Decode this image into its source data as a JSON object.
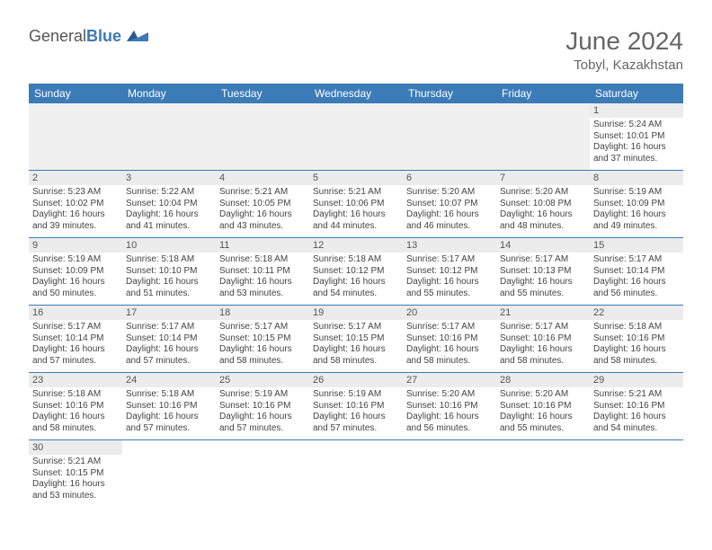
{
  "logo": {
    "text1": "General",
    "text2": "Blue"
  },
  "title": "June 2024",
  "location": "Tobyl, Kazakhstan",
  "colors": {
    "header_bg": "#3b7bb8",
    "header_fg": "#ffffff",
    "daynum_bg": "#ececec",
    "border": "#3b7bb8"
  },
  "weekdays": [
    "Sunday",
    "Monday",
    "Tuesday",
    "Wednesday",
    "Thursday",
    "Friday",
    "Saturday"
  ],
  "weeks": [
    [
      null,
      null,
      null,
      null,
      null,
      null,
      {
        "n": "1",
        "sr": "Sunrise: 5:24 AM",
        "ss": "Sunset: 10:01 PM",
        "dl1": "Daylight: 16 hours",
        "dl2": "and 37 minutes."
      }
    ],
    [
      {
        "n": "2",
        "sr": "Sunrise: 5:23 AM",
        "ss": "Sunset: 10:02 PM",
        "dl1": "Daylight: 16 hours",
        "dl2": "and 39 minutes."
      },
      {
        "n": "3",
        "sr": "Sunrise: 5:22 AM",
        "ss": "Sunset: 10:04 PM",
        "dl1": "Daylight: 16 hours",
        "dl2": "and 41 minutes."
      },
      {
        "n": "4",
        "sr": "Sunrise: 5:21 AM",
        "ss": "Sunset: 10:05 PM",
        "dl1": "Daylight: 16 hours",
        "dl2": "and 43 minutes."
      },
      {
        "n": "5",
        "sr": "Sunrise: 5:21 AM",
        "ss": "Sunset: 10:06 PM",
        "dl1": "Daylight: 16 hours",
        "dl2": "and 44 minutes."
      },
      {
        "n": "6",
        "sr": "Sunrise: 5:20 AM",
        "ss": "Sunset: 10:07 PM",
        "dl1": "Daylight: 16 hours",
        "dl2": "and 46 minutes."
      },
      {
        "n": "7",
        "sr": "Sunrise: 5:20 AM",
        "ss": "Sunset: 10:08 PM",
        "dl1": "Daylight: 16 hours",
        "dl2": "and 48 minutes."
      },
      {
        "n": "8",
        "sr": "Sunrise: 5:19 AM",
        "ss": "Sunset: 10:09 PM",
        "dl1": "Daylight: 16 hours",
        "dl2": "and 49 minutes."
      }
    ],
    [
      {
        "n": "9",
        "sr": "Sunrise: 5:19 AM",
        "ss": "Sunset: 10:09 PM",
        "dl1": "Daylight: 16 hours",
        "dl2": "and 50 minutes."
      },
      {
        "n": "10",
        "sr": "Sunrise: 5:18 AM",
        "ss": "Sunset: 10:10 PM",
        "dl1": "Daylight: 16 hours",
        "dl2": "and 51 minutes."
      },
      {
        "n": "11",
        "sr": "Sunrise: 5:18 AM",
        "ss": "Sunset: 10:11 PM",
        "dl1": "Daylight: 16 hours",
        "dl2": "and 53 minutes."
      },
      {
        "n": "12",
        "sr": "Sunrise: 5:18 AM",
        "ss": "Sunset: 10:12 PM",
        "dl1": "Daylight: 16 hours",
        "dl2": "and 54 minutes."
      },
      {
        "n": "13",
        "sr": "Sunrise: 5:17 AM",
        "ss": "Sunset: 10:12 PM",
        "dl1": "Daylight: 16 hours",
        "dl2": "and 55 minutes."
      },
      {
        "n": "14",
        "sr": "Sunrise: 5:17 AM",
        "ss": "Sunset: 10:13 PM",
        "dl1": "Daylight: 16 hours",
        "dl2": "and 55 minutes."
      },
      {
        "n": "15",
        "sr": "Sunrise: 5:17 AM",
        "ss": "Sunset: 10:14 PM",
        "dl1": "Daylight: 16 hours",
        "dl2": "and 56 minutes."
      }
    ],
    [
      {
        "n": "16",
        "sr": "Sunrise: 5:17 AM",
        "ss": "Sunset: 10:14 PM",
        "dl1": "Daylight: 16 hours",
        "dl2": "and 57 minutes."
      },
      {
        "n": "17",
        "sr": "Sunrise: 5:17 AM",
        "ss": "Sunset: 10:14 PM",
        "dl1": "Daylight: 16 hours",
        "dl2": "and 57 minutes."
      },
      {
        "n": "18",
        "sr": "Sunrise: 5:17 AM",
        "ss": "Sunset: 10:15 PM",
        "dl1": "Daylight: 16 hours",
        "dl2": "and 58 minutes."
      },
      {
        "n": "19",
        "sr": "Sunrise: 5:17 AM",
        "ss": "Sunset: 10:15 PM",
        "dl1": "Daylight: 16 hours",
        "dl2": "and 58 minutes."
      },
      {
        "n": "20",
        "sr": "Sunrise: 5:17 AM",
        "ss": "Sunset: 10:16 PM",
        "dl1": "Daylight: 16 hours",
        "dl2": "and 58 minutes."
      },
      {
        "n": "21",
        "sr": "Sunrise: 5:17 AM",
        "ss": "Sunset: 10:16 PM",
        "dl1": "Daylight: 16 hours",
        "dl2": "and 58 minutes."
      },
      {
        "n": "22",
        "sr": "Sunrise: 5:18 AM",
        "ss": "Sunset: 10:16 PM",
        "dl1": "Daylight: 16 hours",
        "dl2": "and 58 minutes."
      }
    ],
    [
      {
        "n": "23",
        "sr": "Sunrise: 5:18 AM",
        "ss": "Sunset: 10:16 PM",
        "dl1": "Daylight: 16 hours",
        "dl2": "and 58 minutes."
      },
      {
        "n": "24",
        "sr": "Sunrise: 5:18 AM",
        "ss": "Sunset: 10:16 PM",
        "dl1": "Daylight: 16 hours",
        "dl2": "and 57 minutes."
      },
      {
        "n": "25",
        "sr": "Sunrise: 5:19 AM",
        "ss": "Sunset: 10:16 PM",
        "dl1": "Daylight: 16 hours",
        "dl2": "and 57 minutes."
      },
      {
        "n": "26",
        "sr": "Sunrise: 5:19 AM",
        "ss": "Sunset: 10:16 PM",
        "dl1": "Daylight: 16 hours",
        "dl2": "and 57 minutes."
      },
      {
        "n": "27",
        "sr": "Sunrise: 5:20 AM",
        "ss": "Sunset: 10:16 PM",
        "dl1": "Daylight: 16 hours",
        "dl2": "and 56 minutes."
      },
      {
        "n": "28",
        "sr": "Sunrise: 5:20 AM",
        "ss": "Sunset: 10:16 PM",
        "dl1": "Daylight: 16 hours",
        "dl2": "and 55 minutes."
      },
      {
        "n": "29",
        "sr": "Sunrise: 5:21 AM",
        "ss": "Sunset: 10:16 PM",
        "dl1": "Daylight: 16 hours",
        "dl2": "and 54 minutes."
      }
    ],
    [
      {
        "n": "30",
        "sr": "Sunrise: 5:21 AM",
        "ss": "Sunset: 10:15 PM",
        "dl1": "Daylight: 16 hours",
        "dl2": "and 53 minutes."
      },
      null,
      null,
      null,
      null,
      null,
      null
    ]
  ]
}
